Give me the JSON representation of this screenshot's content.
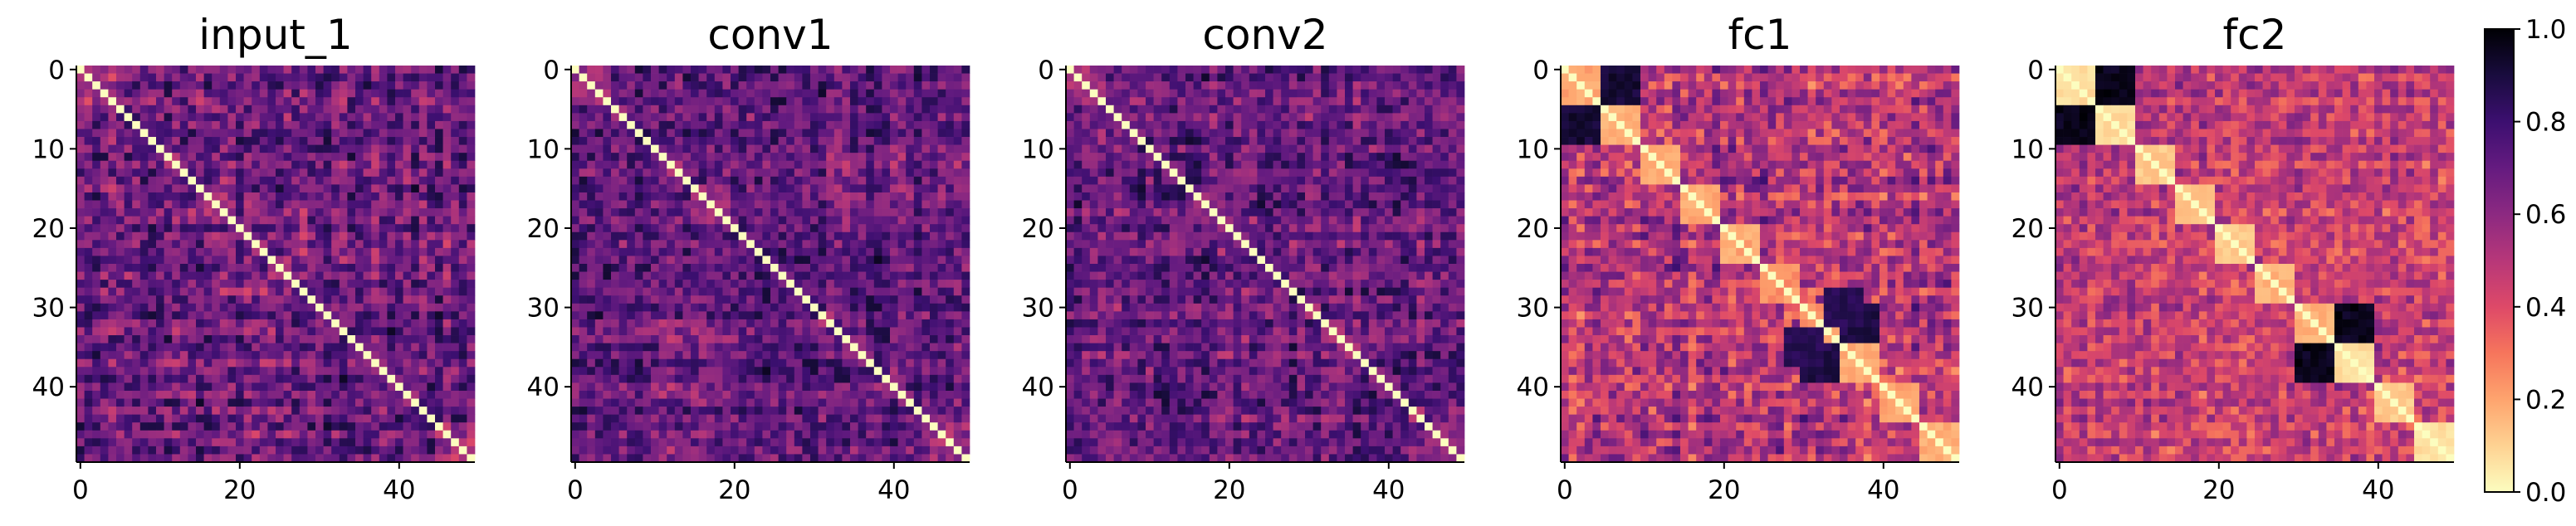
{
  "chart_data": {
    "type": "heatmap",
    "description_free": true,
    "colormap": "magma_r",
    "matrix_size": 50,
    "vmin": 0.0,
    "vmax": 1.0,
    "x_ticks": [
      0,
      20,
      40
    ],
    "x_tick_labels": [
      "0",
      "20",
      "40"
    ],
    "y_ticks": [
      0,
      10,
      20,
      30,
      40
    ],
    "y_tick_labels": [
      "0",
      "10",
      "20",
      "30",
      "40"
    ],
    "colorbar": {
      "ticks": [
        0.0,
        0.2,
        0.4,
        0.6,
        0.8,
        1.0
      ],
      "tick_labels": [
        "0.0",
        "0.2",
        "0.4",
        "0.6",
        "0.8",
        "1.0"
      ]
    },
    "panels": [
      {
        "title": "input_1",
        "diagonal": 0.0,
        "background_mean": 0.68,
        "noise": 0.17,
        "blocks": [
          [
            0,
            5,
            0.3
          ],
          [
            15,
            20,
            0.42
          ],
          [
            34,
            38,
            0.45
          ],
          [
            45,
            50,
            0.35
          ]
        ],
        "block_strength": 0.35
      },
      {
        "title": "conv1",
        "diagonal": 0.0,
        "background_mean": 0.7,
        "noise": 0.15,
        "blocks": [
          [
            0,
            5,
            0.3
          ],
          [
            15,
            20,
            0.42
          ],
          [
            34,
            38,
            0.45
          ],
          [
            45,
            50,
            0.35
          ]
        ],
        "block_strength": 0.35
      },
      {
        "title": "conv2",
        "diagonal": 0.0,
        "background_mean": 0.7,
        "noise": 0.15,
        "blocks": [
          [
            0,
            5,
            0.3
          ],
          [
            15,
            20,
            0.42
          ],
          [
            34,
            38,
            0.45
          ],
          [
            45,
            50,
            0.35
          ]
        ],
        "block_strength": 0.35
      },
      {
        "title": "fc1",
        "diagonal": 0.0,
        "background_mean": 0.5,
        "noise": 0.18,
        "blocks": [
          [
            0,
            5,
            0.15
          ],
          [
            5,
            10,
            0.15
          ],
          [
            10,
            15,
            0.15
          ],
          [
            15,
            20,
            0.15
          ],
          [
            20,
            25,
            0.15
          ],
          [
            25,
            30,
            0.2
          ],
          [
            30,
            35,
            0.2
          ],
          [
            35,
            40,
            0.15
          ],
          [
            40,
            45,
            0.15
          ],
          [
            45,
            50,
            0.15
          ]
        ],
        "block_strength": 0.9,
        "dark_pairs": [
          [
            0,
            5,
            5,
            10,
            0.95
          ],
          [
            30,
            35,
            35,
            40,
            0.92
          ],
          [
            28,
            33,
            33,
            38,
            0.9
          ]
        ]
      },
      {
        "title": "fc2",
        "diagonal": 0.0,
        "background_mean": 0.48,
        "noise": 0.14,
        "blocks": [
          [
            0,
            5,
            0.05
          ],
          [
            5,
            10,
            0.05
          ],
          [
            10,
            15,
            0.1
          ],
          [
            15,
            20,
            0.1
          ],
          [
            20,
            25,
            0.1
          ],
          [
            25,
            30,
            0.15
          ],
          [
            30,
            35,
            0.15
          ],
          [
            35,
            40,
            0.05
          ],
          [
            40,
            45,
            0.1
          ],
          [
            45,
            50,
            0.05
          ]
        ],
        "block_strength": 0.95,
        "dark_pairs": [
          [
            0,
            5,
            5,
            10,
            1.0
          ],
          [
            30,
            35,
            35,
            40,
            1.0
          ]
        ]
      }
    ]
  }
}
